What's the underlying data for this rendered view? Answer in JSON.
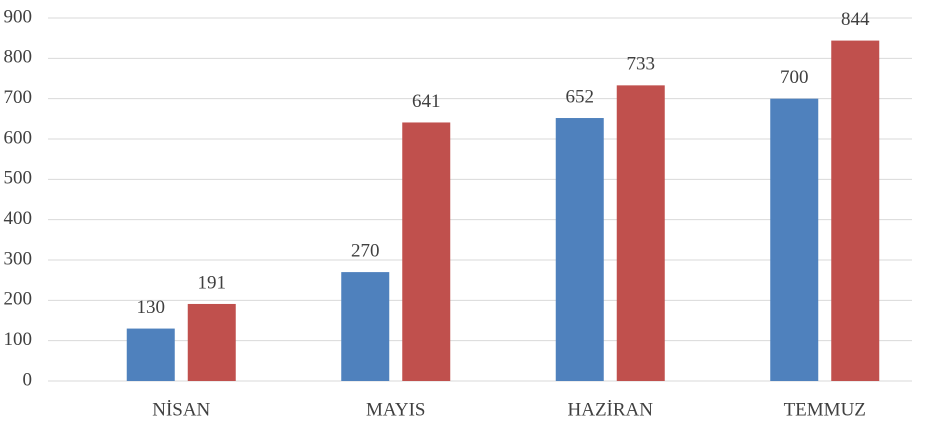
{
  "chart_data": {
    "type": "bar",
    "categories": [
      "NİSAN",
      "MAYIS",
      "HAZİRAN",
      "TEMMUZ"
    ],
    "series": [
      {
        "color": "#4f81bd",
        "values": [
          130,
          270,
          652,
          700
        ]
      },
      {
        "color": "#c0504d",
        "values": [
          191,
          641,
          733,
          844
        ]
      }
    ],
    "ylim": [
      0,
      900
    ],
    "yticks": [
      0,
      100,
      200,
      300,
      400,
      500,
      600,
      700,
      800,
      900
    ],
    "grid": true
  }
}
